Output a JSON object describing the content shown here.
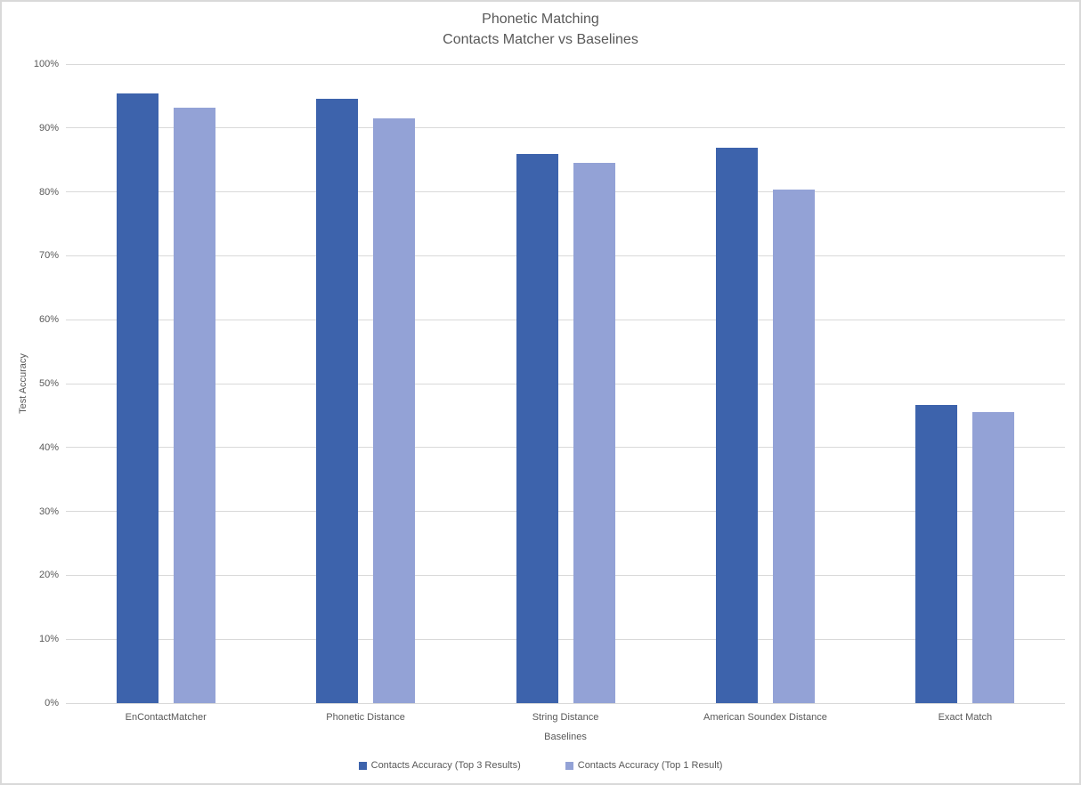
{
  "window": {
    "background": "#FFFFFF",
    "border_color": "#D9D9D9"
  },
  "title": {
    "line1": "Phonetic Matching",
    "line2": "Contacts Matcher vs Baselines"
  },
  "axes": {
    "y_title": "Test Accuracy",
    "x_title": "Baselines"
  },
  "colors": {
    "gridline": "#D9D9D9",
    "axis_text": "#595959",
    "title_text": "#595959",
    "series_dark_blue": "#3D63AC",
    "series_light_blue": "#93A2D6"
  },
  "chart_data": {
    "type": "bar",
    "title": "Phonetic Matching — Contacts Matcher vs Baselines",
    "categories": [
      "EnContactMatcher",
      "Phonetic Distance",
      "String Distance",
      "American Soundex Distance",
      "Exact Match"
    ],
    "series": [
      {
        "name": "Contacts Accuracy (Top 3 Results)",
        "color": "#3D63AC",
        "values": [
          95.4,
          94.6,
          86.0,
          86.9,
          46.6
        ]
      },
      {
        "name": "Contacts Accuracy (Top 1 Result)",
        "color": "#93A2D6",
        "values": [
          93.2,
          91.5,
          84.5,
          80.3,
          45.5
        ]
      }
    ],
    "xlabel": "Baselines",
    "ylabel": "Test Accuracy",
    "ylim": [
      0,
      100
    ],
    "y_tick_step": 10,
    "y_tick_suffix": "%",
    "grid": true,
    "legend_position": "bottom"
  }
}
